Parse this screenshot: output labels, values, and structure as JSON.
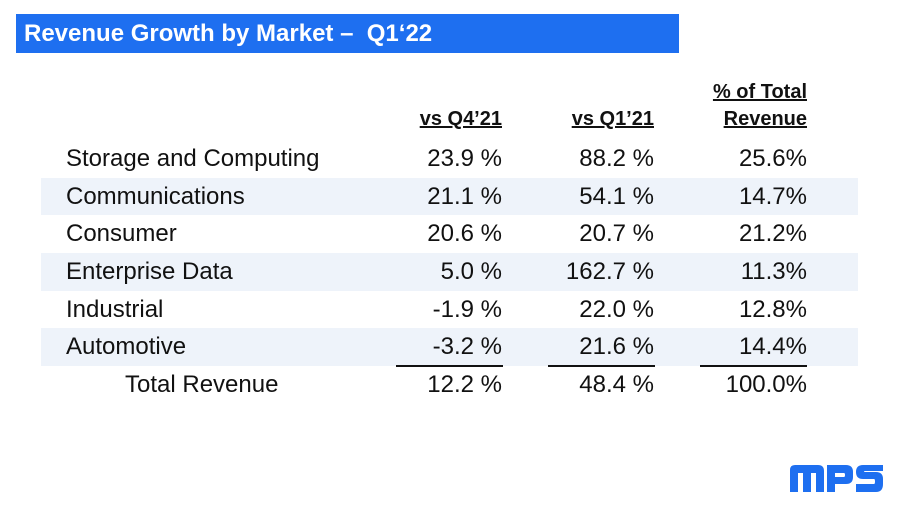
{
  "title": "Revenue Growth by Market –  Q1‘22",
  "headers": {
    "col1": "vs Q4’21",
    "col2": "vs Q1’21",
    "col3_line1": "% of Total",
    "col3_line2": "Revenue"
  },
  "rows": [
    {
      "market": "Storage and Computing",
      "vs_q4_21": "23.9 %",
      "vs_q1_21": "88.2 %",
      "pct_total": "25.6%"
    },
    {
      "market": "Communications",
      "vs_q4_21": "21.1 %",
      "vs_q1_21": "54.1 %",
      "pct_total": "14.7%"
    },
    {
      "market": "Consumer",
      "vs_q4_21": "20.6 %",
      "vs_q1_21": "20.7 %",
      "pct_total": "21.2%"
    },
    {
      "market": "Enterprise Data",
      "vs_q4_21": "5.0 %",
      "vs_q1_21": "162.7 %",
      "pct_total": "11.3%"
    },
    {
      "market": "Industrial",
      "vs_q4_21": "-1.9 %",
      "vs_q1_21": "22.0 %",
      "pct_total": "12.8%"
    },
    {
      "market": "Automotive",
      "vs_q4_21": "-3.2 %",
      "vs_q1_21": "21.6 %",
      "pct_total": "14.4%"
    }
  ],
  "total": {
    "market": "Total Revenue",
    "vs_q4_21": "12.2 %",
    "vs_q1_21": "48.4 %",
    "pct_total": "100.0%"
  },
  "logo_text": "MPS",
  "colors": {
    "title_bg": "#1e6ff0",
    "row_shade": "#eef3fa",
    "logo": "#1e6ff0"
  }
}
